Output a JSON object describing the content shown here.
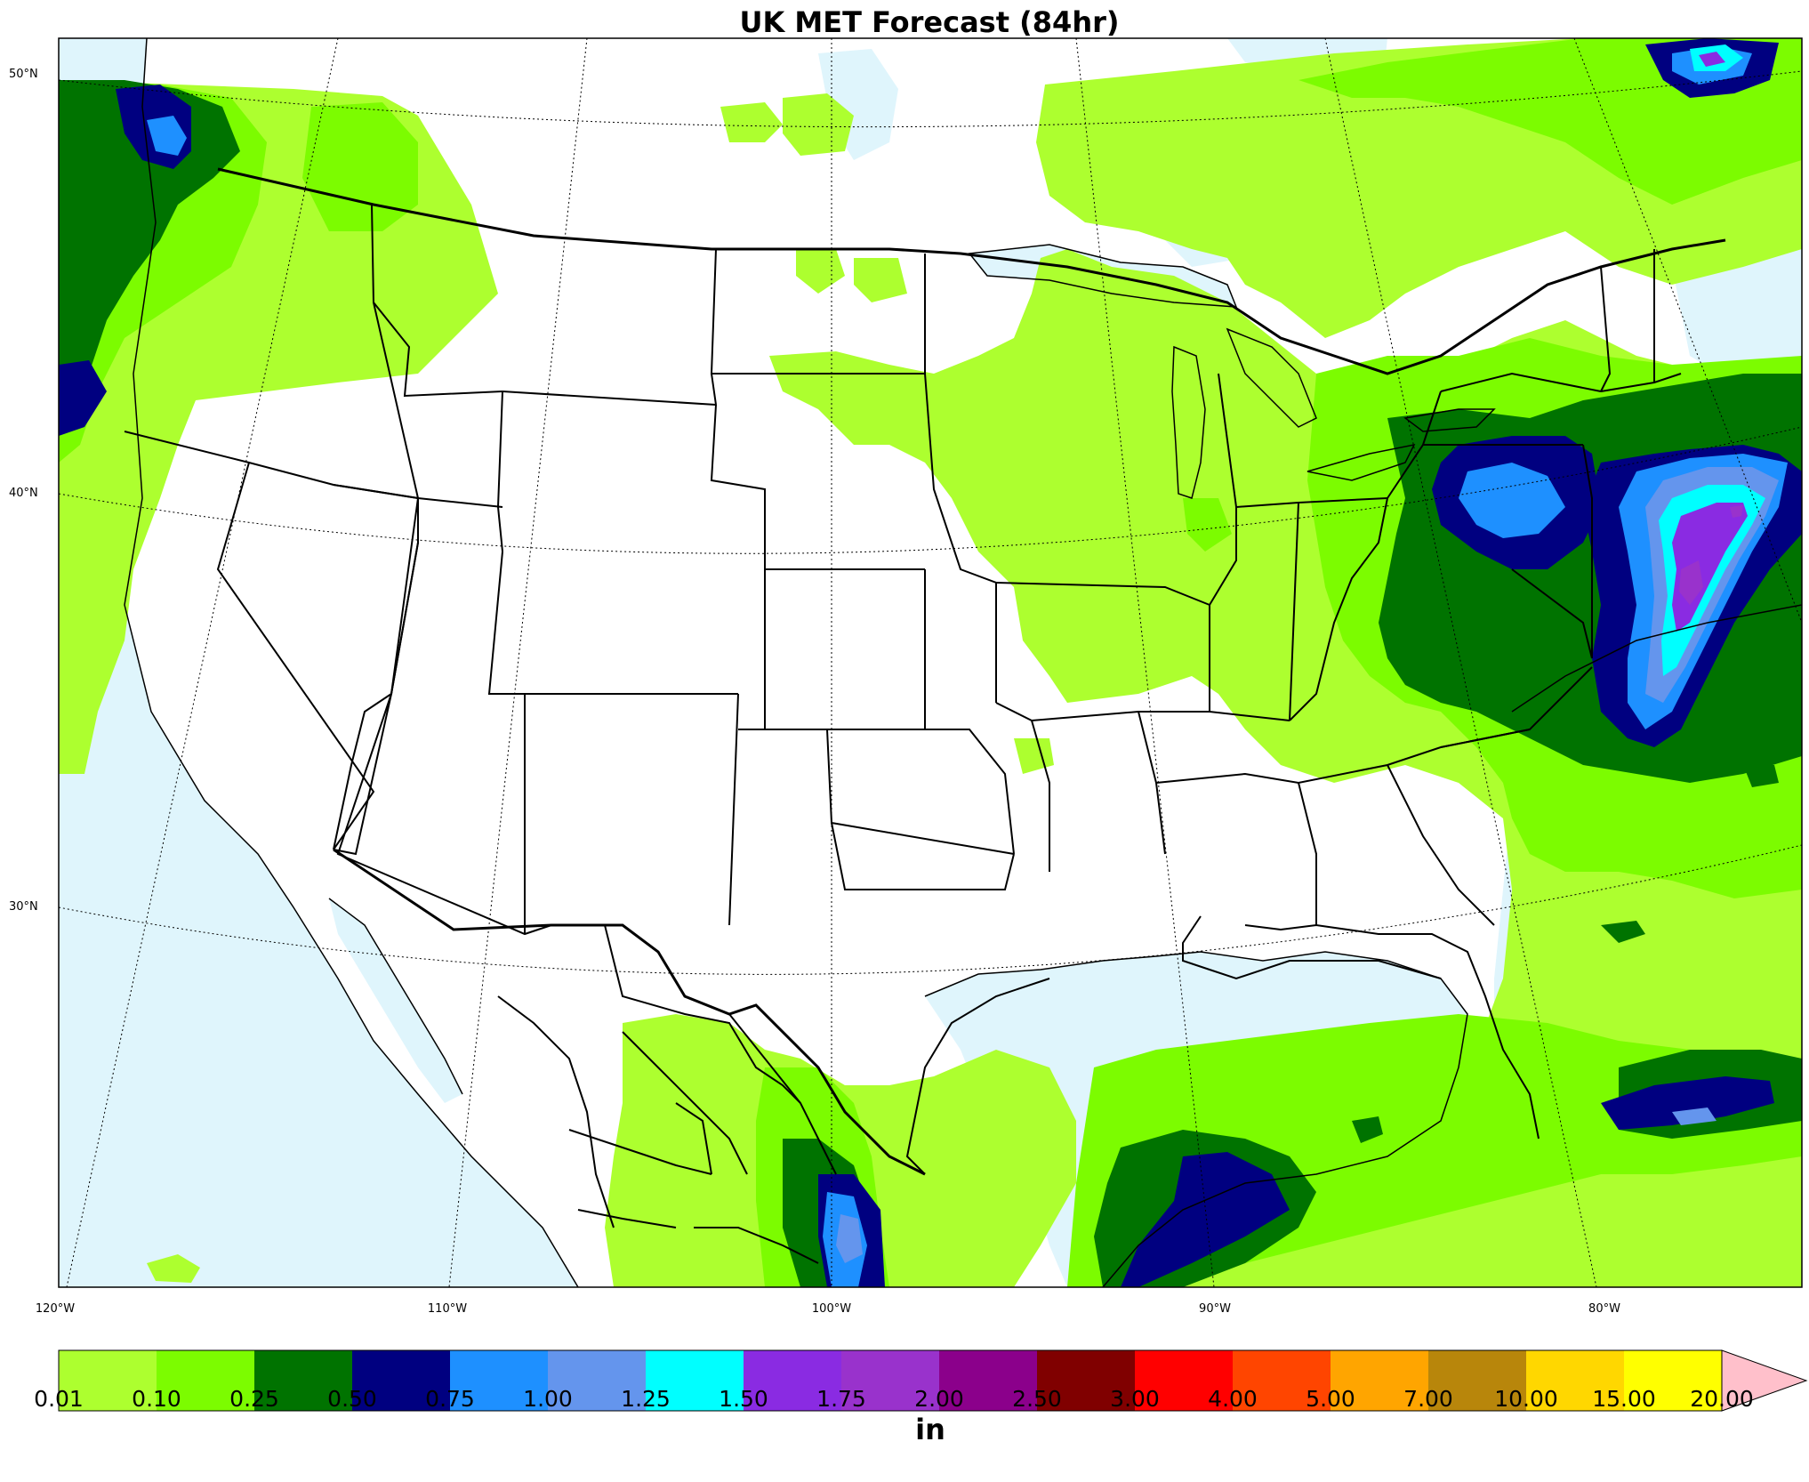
{
  "title": "UK MET Forecast (84hr)",
  "lat_labels": [
    "50°N",
    "40°N",
    "30°N"
  ],
  "lon_labels": [
    "120°W",
    "110°W",
    "100°W",
    "90°W",
    "80°W"
  ],
  "colorbar": {
    "unit": "in",
    "ticks": [
      "0.01",
      "0.10",
      "0.25",
      "0.50",
      "0.75",
      "1.00",
      "1.25",
      "1.50",
      "1.75",
      "2.00",
      "2.50",
      "3.00",
      "4.00",
      "5.00",
      "7.00",
      "10.00",
      "15.00",
      "20.00"
    ],
    "colors": [
      "#adff2f",
      "#7cfc00",
      "#007300",
      "#000080",
      "#1e90ff",
      "#6495ed",
      "#00ffff",
      "#8a2be2",
      "#9932cc",
      "#8b008b",
      "#800000",
      "#ff0000",
      "#ff4500",
      "#ffa500",
      "#b8860b",
      "#ffd700",
      "#ffff00"
    ],
    "extend_color": "#ffc0cb"
  },
  "colors": {
    "water": "#dff5fc",
    "land": "#ffffff",
    "border": "#000000"
  }
}
